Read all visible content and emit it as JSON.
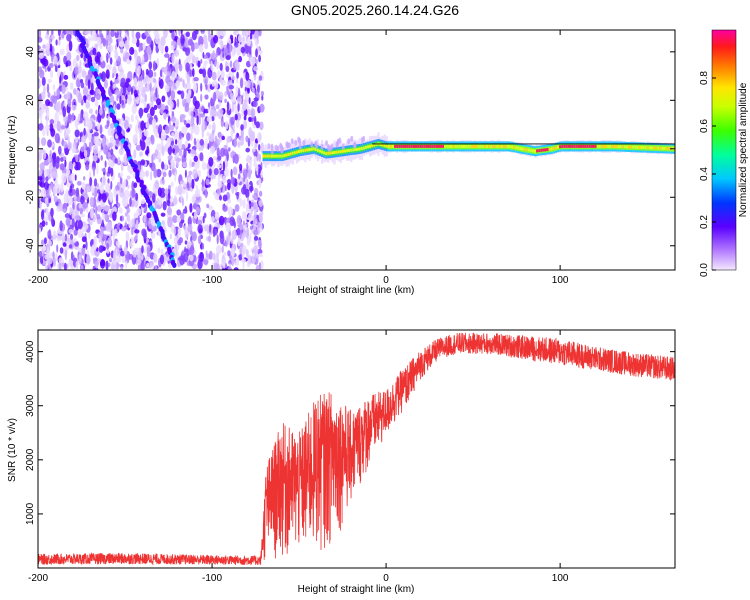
{
  "figure": {
    "title": "GN05.2025.260.14.24.G26"
  },
  "chart_data": [
    {
      "type": "heatmap",
      "name": "spectrogram",
      "xlabel": "Height of straight line (km)",
      "ylabel": "Frequency (Hz)",
      "xlim": [
        -200,
        166
      ],
      "ylim": [
        -50,
        49
      ],
      "xticks": [
        -200,
        -100,
        0,
        100
      ],
      "yticks": [
        -40,
        -20,
        0,
        20,
        40
      ],
      "noise_region_x": [
        -200,
        -71
      ],
      "diagonal_trace": {
        "x": [
          -177,
          -121
        ],
        "y": [
          48,
          -48
        ]
      },
      "signal_band": {
        "x": [
          -71,
          166
        ],
        "center_y": [
          [
            -71,
            -3
          ],
          [
            -60,
            -3
          ],
          [
            -50,
            -1
          ],
          [
            -42,
            0
          ],
          [
            -35,
            -2
          ],
          [
            -25,
            -1
          ],
          [
            -15,
            0
          ],
          [
            -10,
            1
          ],
          [
            -5,
            2
          ],
          [
            0,
            1
          ],
          [
            10,
            1
          ],
          [
            40,
            1
          ],
          [
            70,
            1
          ],
          [
            85,
            -1
          ],
          [
            95,
            0
          ],
          [
            100,
            1
          ],
          [
            130,
            1
          ],
          [
            166,
            0
          ]
        ],
        "hot_segments": [
          [
            4,
            33
          ],
          [
            86,
            93
          ],
          [
            99,
            121
          ]
        ]
      },
      "colorbar": {
        "label": "Normalized spectral amplitude",
        "range": [
          0,
          1
        ],
        "ticks": [
          0.0,
          0.2,
          0.4,
          0.6,
          0.8
        ]
      }
    },
    {
      "type": "line",
      "name": "snr",
      "xlabel": "Height of straight line (km)",
      "ylabel": "SNR (10 * v/v)",
      "xlim": [
        -200,
        166
      ],
      "ylim": [
        0,
        4400
      ],
      "xticks": [
        -200,
        -100,
        0,
        100
      ],
      "yticks": [
        1000,
        2000,
        3000,
        4000
      ],
      "color": "#ee3333",
      "series": [
        {
          "name": "SNR",
          "envelope": {
            "x": [
              -200,
              -150,
              -100,
              -72,
              -69,
              -60,
              -50,
              -40,
              -30,
              -20,
              -10,
              0,
              10,
              20,
              30,
              40,
              60,
              80,
              100,
              120,
              140,
              166
            ],
            "low": [
              60,
              70,
              60,
              50,
              50,
              100,
              150,
              200,
              400,
              1100,
              1800,
              2350,
              2900,
              3500,
              3850,
              3950,
              3950,
              3850,
              3750,
              3650,
              3550,
              3450
            ],
            "high": [
              260,
              280,
              240,
              230,
              1900,
              2700,
              2500,
              3200,
              3300,
              2900,
              3200,
              3300,
              3700,
              4050,
              4250,
              4350,
              4350,
              4300,
              4250,
              4100,
              4000,
              3900
            ]
          }
        }
      ]
    }
  ]
}
